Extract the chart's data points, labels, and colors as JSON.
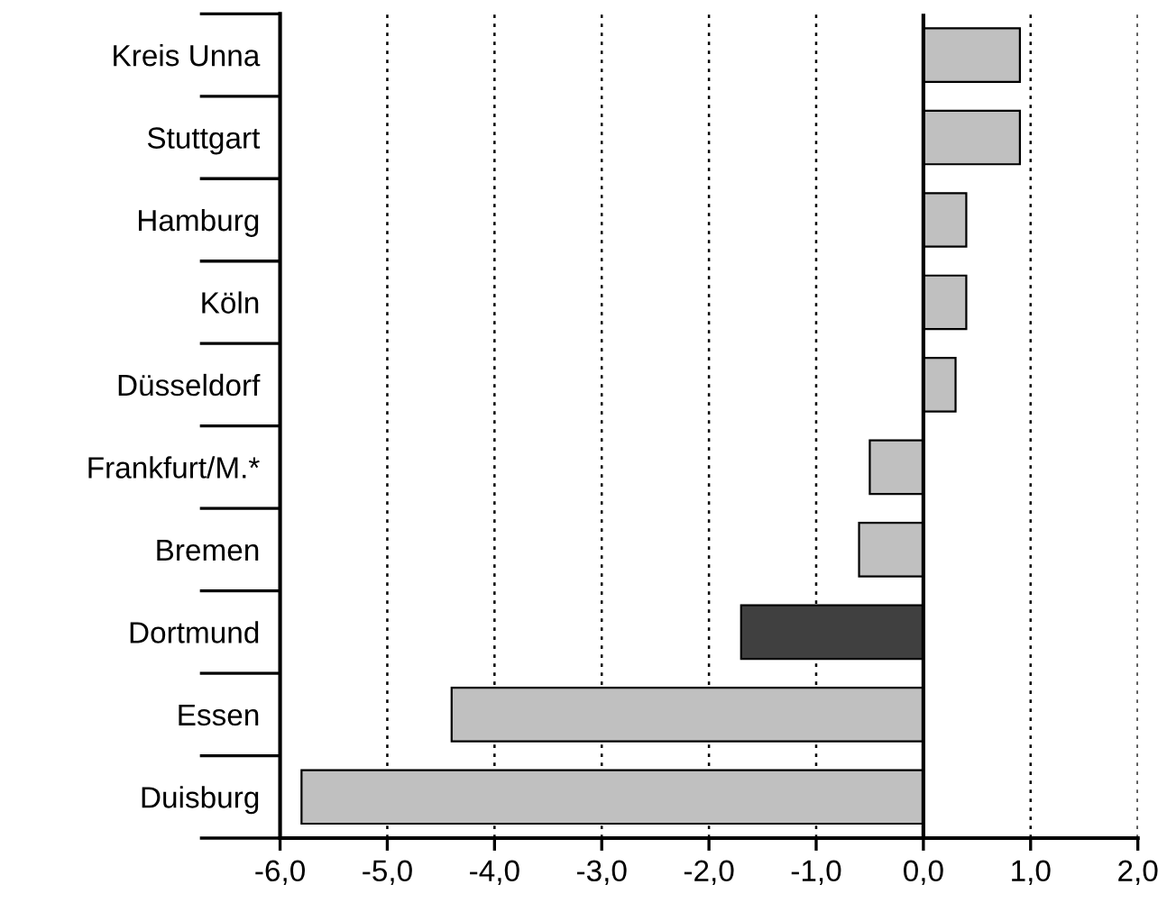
{
  "chart_data": {
    "type": "bar",
    "orientation": "horizontal",
    "categories": [
      "Kreis Unna",
      "Stuttgart",
      "Hamburg",
      "Köln",
      "Düsseldorf",
      "Frankfurt/M.*",
      "Bremen",
      "Dortmund",
      "Essen",
      "Duisburg"
    ],
    "values": [
      0.9,
      0.9,
      0.4,
      0.4,
      0.3,
      -0.5,
      -0.6,
      -1.7,
      -4.4,
      -5.8
    ],
    "colors": [
      "#c0c0c0",
      "#c0c0c0",
      "#c0c0c0",
      "#c0c0c0",
      "#c0c0c0",
      "#c0c0c0",
      "#c0c0c0",
      "#404040",
      "#c0c0c0",
      "#c0c0c0"
    ],
    "xlim": [
      -6,
      2
    ],
    "xticks": [
      {
        "value": -6,
        "label": "-6,0"
      },
      {
        "value": -5,
        "label": "-5,0"
      },
      {
        "value": -4,
        "label": "-4,0"
      },
      {
        "value": -3,
        "label": "-3,0"
      },
      {
        "value": -2,
        "label": "-2,0"
      },
      {
        "value": -1,
        "label": "-1,0"
      },
      {
        "value": 0,
        "label": "0,0"
      },
      {
        "value": 1,
        "label": "1,0"
      },
      {
        "value": 2,
        "label": "2,0"
      }
    ],
    "grid": "x",
    "ref_lines": [
      {
        "axis": "x",
        "value": 0,
        "color": "#000000",
        "line_style": "solid"
      }
    ]
  }
}
